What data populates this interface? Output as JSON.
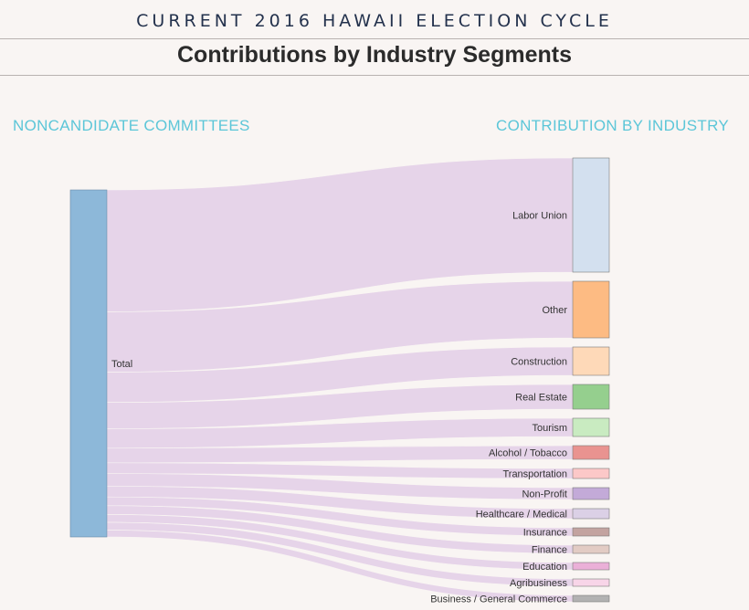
{
  "header": {
    "title": "CURRENT 2016 HAWAII ELECTION CYCLE",
    "subtitle": "Contributions by Industry Segments"
  },
  "columns": {
    "left": "NONCANDIDATE COMMITTEES",
    "right": "CONTRIBUTION BY INDUSTRY"
  },
  "chart_data": {
    "type": "sankey",
    "source": {
      "name": "Total",
      "color": "#8db8d9"
    },
    "link_color": "#e5d2e8",
    "nodes": [
      {
        "name": "Labor Union",
        "value": 125,
        "color": "#d3e0ef"
      },
      {
        "name": "Other",
        "value": 62,
        "color": "#fdbb83"
      },
      {
        "name": "Construction",
        "value": 31,
        "color": "#fed9b8"
      },
      {
        "name": "Real Estate",
        "value": 27,
        "color": "#95cf8e"
      },
      {
        "name": "Tourism",
        "value": 20,
        "color": "#c9ebc1"
      },
      {
        "name": "Alcohol / Tobacco",
        "value": 15,
        "color": "#e99390"
      },
      {
        "name": "Transportation",
        "value": 11,
        "color": "#fcc8c8"
      },
      {
        "name": "Non-Profit",
        "value": 13,
        "color": "#c3aad8"
      },
      {
        "name": "Healthcare / Medical",
        "value": 11,
        "color": "#dbd0e6"
      },
      {
        "name": "Insurance",
        "value": 9,
        "color": "#c3a3a0"
      },
      {
        "name": "Finance",
        "value": 9,
        "color": "#e2cbc4"
      },
      {
        "name": "Education",
        "value": 8,
        "color": "#ebb0d8"
      },
      {
        "name": "Agribusiness",
        "value": 8,
        "color": "#f8d5e8"
      },
      {
        "name": "Business / General Commerce",
        "value": 7,
        "color": "#b2b2b2"
      }
    ]
  }
}
